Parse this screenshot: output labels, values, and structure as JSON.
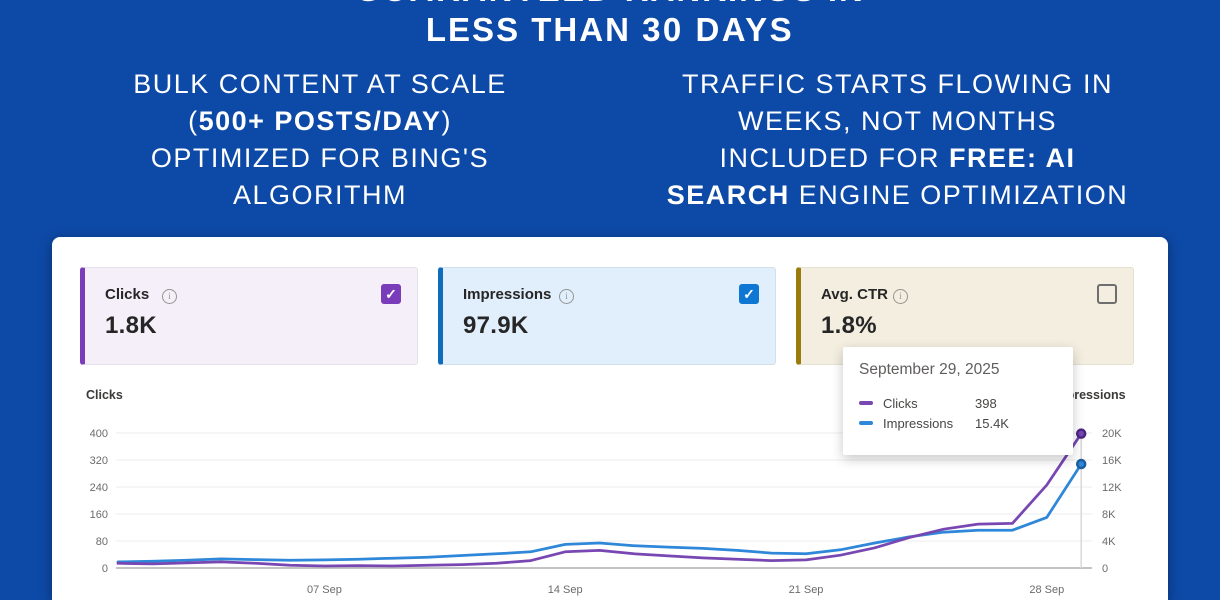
{
  "page": {
    "background_color": "#0d49a6"
  },
  "hero": {
    "line1": [
      {
        "text": "GUARANTEED ",
        "bold": true
      },
      {
        "text": "RANKINGS IN",
        "bold": false
      }
    ],
    "line2": [
      {
        "text": "LESS THAN ",
        "bold": false
      },
      {
        "text": "30 DAYS",
        "bold": true
      }
    ],
    "left_lines": [
      [
        {
          "text": "BULK CONTENT AT SCALE",
          "bold": false
        }
      ],
      [
        {
          "text": "(",
          "bold": false
        },
        {
          "text": "500+ POSTS/DAY",
          "bold": true
        },
        {
          "text": ")",
          "bold": false
        }
      ],
      [
        {
          "text": "OPTIMIZED FOR BING'S",
          "bold": false
        }
      ],
      [
        {
          "text": "ALGORITHM",
          "bold": false
        }
      ]
    ],
    "right_lines": [
      [
        {
          "text": "TRAFFIC STARTS FLOWING IN",
          "bold": false
        }
      ],
      [
        {
          "text": "WEEKS, NOT MONTHS",
          "bold": false
        }
      ],
      [
        {
          "text": "INCLUDED FOR ",
          "bold": false
        },
        {
          "text": "FREE: AI",
          "bold": true
        }
      ],
      [
        {
          "text": "SEARCH",
          "bold": true
        },
        {
          "text": " ENGINE OPTIMIZATION",
          "bold": false
        }
      ]
    ]
  },
  "dashboard": {
    "cards": [
      {
        "label": "Clicks",
        "value": "1.8K",
        "checked": true,
        "accent": "#7a3cb8",
        "bg": "#f5effa",
        "checkbox_color": "#7a3cb8"
      },
      {
        "label": "Impressions",
        "value": "97.9K",
        "checked": true,
        "accent": "#0f6cbd",
        "bg": "#e1eefb",
        "checkbox_color": "#0d77d3"
      },
      {
        "label": "Avg. CTR",
        "value": "1.8%",
        "checked": false,
        "accent": "#9a7b0c",
        "bg": "#f3eee0",
        "checkbox_color": ""
      }
    ],
    "tooltip": {
      "date": "September 29, 2025",
      "rows": [
        {
          "name": "Clicks",
          "value": "398",
          "color": "#7847b2"
        },
        {
          "name": "Impressions",
          "value": "15.4K",
          "color": "#2e87d8"
        }
      ]
    }
  },
  "chart_data": {
    "type": "line",
    "x": [
      "1 Sep",
      "2 Sep",
      "3 Sep",
      "4 Sep",
      "5 Sep",
      "6 Sep",
      "7 Sep",
      "8 Sep",
      "9 Sep",
      "10 Sep",
      "11 Sep",
      "12 Sep",
      "13 Sep",
      "14 Sep",
      "15 Sep",
      "16 Sep",
      "17 Sep",
      "18 Sep",
      "19 Sep",
      "20 Sep",
      "21 Sep",
      "22 Sep",
      "23 Sep",
      "24 Sep",
      "25 Sep",
      "26 Sep",
      "27 Sep",
      "28 Sep",
      "29 Sep"
    ],
    "x_ticks": [
      {
        "label": "07 Sep",
        "index": 6
      },
      {
        "label": "14 Sep",
        "index": 13
      },
      {
        "label": "21 Sep",
        "index": 20
      },
      {
        "label": "28 Sep",
        "index": 27
      }
    ],
    "left_axis": {
      "title": "Clicks",
      "max": 400,
      "ticks": [
        0,
        80,
        160,
        240,
        320,
        400
      ]
    },
    "right_axis": {
      "title": "Impressions",
      "max": 20000,
      "ticks": [
        {
          "label": "0",
          "value": 0
        },
        {
          "label": "4K",
          "value": 4000
        },
        {
          "label": "8K",
          "value": 8000
        },
        {
          "label": "12K",
          "value": 12000
        },
        {
          "label": "16K",
          "value": 16000
        },
        {
          "label": "20K",
          "value": 20000
        }
      ]
    },
    "series": [
      {
        "name": "Impressions",
        "axis": "right",
        "color": "#2e87d8",
        "dot_color": "#1b5e9e",
        "values": [
          900,
          1000,
          1150,
          1350,
          1250,
          1150,
          1200,
          1300,
          1450,
          1600,
          1850,
          2100,
          2400,
          3500,
          3700,
          3300,
          3100,
          2900,
          2600,
          2200,
          2100,
          2700,
          3700,
          4600,
          5300,
          5600,
          5600,
          7500,
          15400
        ]
      },
      {
        "name": "Clicks",
        "axis": "left",
        "color": "#7847b2",
        "dot_color": "#4b2482",
        "values": [
          14,
          12,
          15,
          18,
          14,
          8,
          6,
          7,
          6,
          8,
          10,
          14,
          22,
          48,
          52,
          42,
          36,
          30,
          26,
          22,
          24,
          38,
          60,
          90,
          115,
          130,
          132,
          246,
          398
        ]
      }
    ],
    "hover": {
      "index": 28,
      "date": "September 29, 2025",
      "clicks": 398,
      "impressions": "15.4K"
    },
    "grid": true,
    "legend_position": "tooltip"
  }
}
